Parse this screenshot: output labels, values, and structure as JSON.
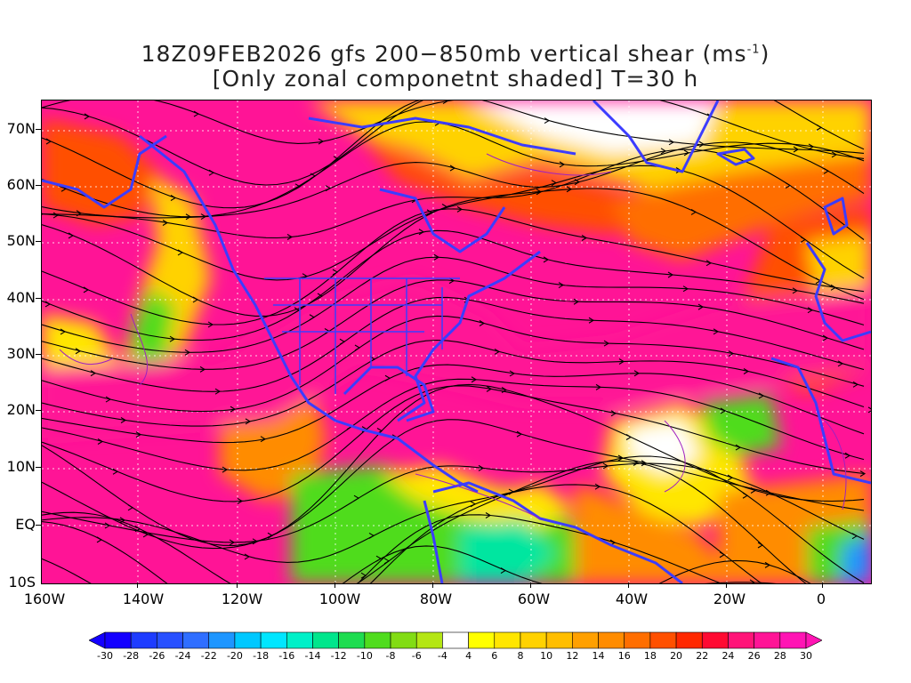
{
  "title": {
    "line1_prefix": "18Z09FEB2026 gfs 200−850mb vertical shear (ms",
    "line1_sup": "-1",
    "line1_suffix": ")",
    "line2": "[Only zonal componetnt shaded] T=30 h"
  },
  "axes": {
    "lat_labels": [
      "70N",
      "60N",
      "50N",
      "40N",
      "30N",
      "20N",
      "10N",
      "EQ",
      "10S"
    ],
    "lon_labels": [
      "160W",
      "140W",
      "120W",
      "100W",
      "80W",
      "60W",
      "40W",
      "20W",
      "0"
    ]
  },
  "colorbar": {
    "labels": [
      "-30",
      "-28",
      "-26",
      "-24",
      "-22",
      "-20",
      "-18",
      "-16",
      "-14",
      "-12",
      "-10",
      "-8",
      "-6",
      "-4",
      "4",
      "6",
      "8",
      "10",
      "12",
      "14",
      "16",
      "18",
      "20",
      "22",
      "24",
      "26",
      "28",
      "30"
    ],
    "colors": [
      "#1400ff",
      "#1e3cff",
      "#2850ff",
      "#2f6eff",
      "#1e96ff",
      "#00c8ff",
      "#00e6ff",
      "#00f0c8",
      "#00e68c",
      "#1edc50",
      "#50dc1e",
      "#82dc14",
      "#b4e614",
      "#ffffff",
      "#ffff00",
      "#ffe600",
      "#ffd200",
      "#ffbe00",
      "#ffa000",
      "#ff8c00",
      "#ff6e00",
      "#ff5000",
      "#ff2800",
      "#ff0a32",
      "#ff1478",
      "#ff1496",
      "#ff14b4"
    ],
    "left_arrow_color": "#1400ff",
    "right_arrow_color": "#ff14b4"
  },
  "colors": {
    "coastline": "#3c3cff",
    "contours": "#a020c0",
    "streamlines": "#000000",
    "grid": "#ffffff"
  }
}
